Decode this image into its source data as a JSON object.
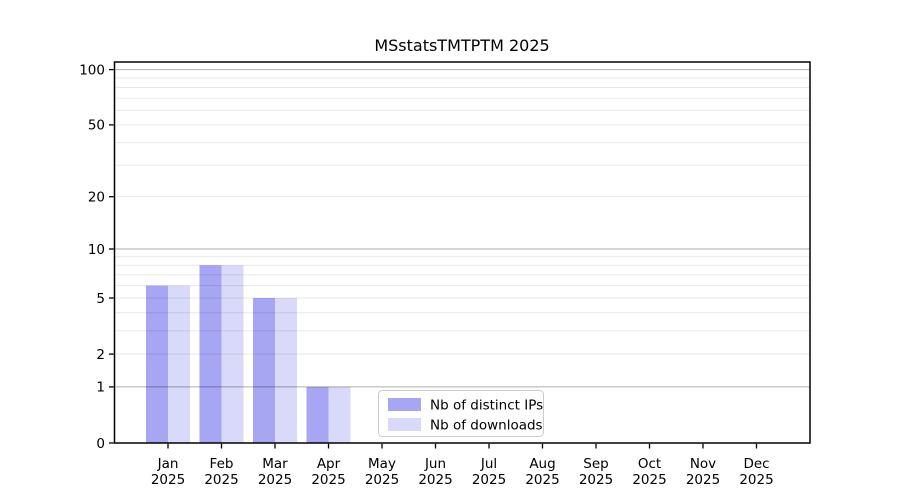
{
  "chart_data": {
    "type": "bar",
    "title": "MSstatsTMTPTM 2025",
    "categories": [
      "Jan",
      "Feb",
      "Mar",
      "Apr",
      "May",
      "Jun",
      "Jul",
      "Aug",
      "Sep",
      "Oct",
      "Nov",
      "Dec"
    ],
    "category_year": "2025",
    "series": [
      {
        "name": "Nb of distinct IPs",
        "color": "#a6a6f2",
        "values": [
          6,
          8,
          5,
          1,
          0,
          0,
          0,
          0,
          0,
          0,
          0,
          0
        ]
      },
      {
        "name": "Nb of downloads",
        "color": "#d9d9f9",
        "values": [
          6,
          8,
          5,
          1,
          0,
          0,
          0,
          0,
          0,
          0,
          0,
          0
        ]
      }
    ],
    "y_axis": {
      "scale": "log1p",
      "tick_values": [
        0,
        1,
        2,
        5,
        10,
        20,
        50,
        100
      ],
      "major_gridlines": [
        1,
        10,
        100
      ],
      "minor_gridlines": [
        2,
        3,
        4,
        5,
        6,
        7,
        8,
        9,
        20,
        30,
        40,
        50,
        60,
        70,
        80,
        90
      ],
      "range": [
        0,
        110
      ]
    },
    "x_axis": {
      "label_line2": "2025"
    },
    "legend": {
      "position": "lower center"
    },
    "grid": true,
    "colors": {
      "spine": "#000000",
      "major_grid": "rgba(0,0,0,0.32)",
      "minor_grid": "rgba(0,0,0,0.09)",
      "legend_border": "#cccccc",
      "legend_background": "#ffffff"
    }
  }
}
